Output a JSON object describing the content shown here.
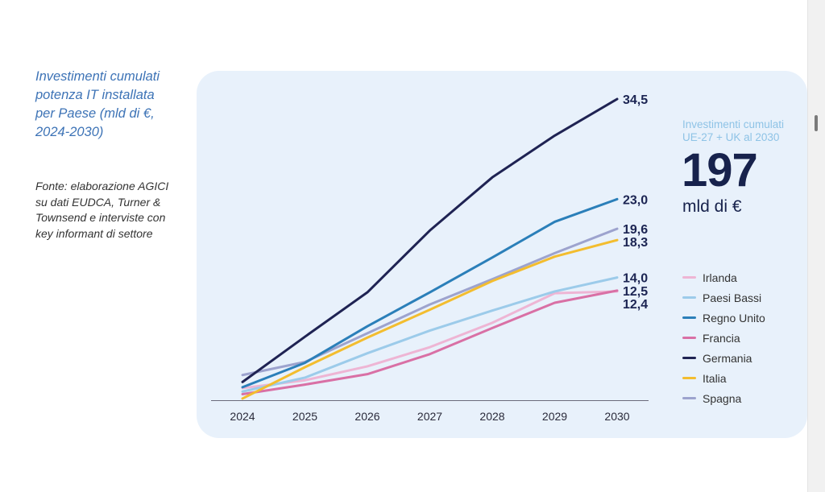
{
  "sidebar": {
    "title": "Investimenti cumulati potenza IT installata per Paese (mld di €, 2024-2030)",
    "source": "Fonte: elaborazione AGICI su dati EUDCA, Turner & Townsend e interviste con key informant di settore"
  },
  "kpi": {
    "label": "Investimenti cumulati UE-27 + UK al 2030",
    "value": "197",
    "unit": "mld di €"
  },
  "chart_data": {
    "type": "line",
    "title": "Investimenti cumulati potenza IT installata per Paese (mld di €, 2024-2030)",
    "xlabel": "",
    "ylabel": "mld di €",
    "ylim": [
      0,
      36
    ],
    "x": [
      "2024",
      "2025",
      "2026",
      "2027",
      "2028",
      "2029",
      "2030"
    ],
    "series": [
      {
        "name": "Irlanda",
        "color": "#eeb5d4",
        "values": [
          1.3,
          2.2,
          3.8,
          6.0,
          8.8,
          12.2,
          12.4
        ]
      },
      {
        "name": "Paesi Bassi",
        "color": "#9ccbea",
        "values": [
          0.9,
          2.5,
          5.3,
          7.9,
          10.2,
          12.4,
          14.0
        ]
      },
      {
        "name": "Regno Unito",
        "color": "#2b7fb9",
        "values": [
          1.4,
          4.2,
          8.4,
          12.3,
          16.3,
          20.4,
          23.0
        ]
      },
      {
        "name": "Francia",
        "color": "#d970a5",
        "values": [
          0.6,
          1.7,
          2.9,
          5.2,
          8.2,
          11.1,
          12.5
        ]
      },
      {
        "name": "Germania",
        "color": "#1f2353",
        "values": [
          2.0,
          7.2,
          12.3,
          19.4,
          25.5,
          30.3,
          34.5
        ]
      },
      {
        "name": "Italia",
        "color": "#f3bd2f",
        "values": [
          0.1,
          3.7,
          7.1,
          10.3,
          13.6,
          16.4,
          18.3
        ]
      },
      {
        "name": "Spagna",
        "color": "#9da3ce",
        "values": [
          2.8,
          4.3,
          7.6,
          10.9,
          13.8,
          16.8,
          19.6
        ]
      }
    ],
    "data_labels": [
      {
        "series": "Germania",
        "text": "34,5"
      },
      {
        "series": "Regno Unito",
        "text": "23,0"
      },
      {
        "series": "Spagna",
        "text": "19,6"
      },
      {
        "series": "Italia",
        "text": "18,3"
      },
      {
        "series": "Paesi Bassi",
        "text": "14,0"
      },
      {
        "series": "Francia",
        "text": "12,5"
      },
      {
        "series": "Irlanda",
        "text": "12,4"
      }
    ],
    "legend_order": [
      "Irlanda",
      "Paesi Bassi",
      "Regno Unito",
      "Francia",
      "Germania",
      "Italia",
      "Spagna"
    ],
    "legend_position": "right",
    "grid": false
  }
}
